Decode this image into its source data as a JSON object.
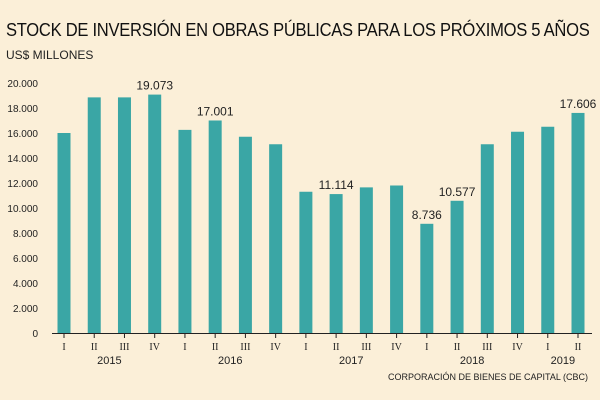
{
  "chart_data": {
    "type": "bar",
    "title": "STOCK DE INVERSIÓN EN OBRAS PÚBLICAS PARA LOS PRÓXIMOS 5 AÑOS",
    "ylabel": "US$ MILLONES",
    "source": "CORPORACIÓN DE BIENES DE CAPITAL (CBC)",
    "ylim": [
      0,
      20000
    ],
    "yticks": [
      0,
      2000,
      4000,
      6000,
      8000,
      10000,
      12000,
      14000,
      16000,
      18000,
      20000
    ],
    "ytick_labels": [
      "0",
      "2.000",
      "4.000",
      "6.000",
      "8.000",
      "10.000",
      "12.000",
      "14.000",
      "16.000",
      "18.000",
      "20.000"
    ],
    "bar_color": "#3aa6a5",
    "categories": [
      "I",
      "II",
      "III",
      "IV",
      "I",
      "II",
      "III",
      "IV",
      "I",
      "II",
      "III",
      "IV",
      "I",
      "II",
      "III",
      "IV",
      "I",
      "II"
    ],
    "values": [
      16000,
      18850,
      18850,
      19073,
      16250,
      17001,
      15700,
      15100,
      11300,
      11114,
      11650,
      11800,
      8736,
      10577,
      15100,
      16100,
      16500,
      17606
    ],
    "labeled": [
      {
        "index": 3,
        "text": "19.073"
      },
      {
        "index": 5,
        "text": "17.001"
      },
      {
        "index": 9,
        "text": "11.114"
      },
      {
        "index": 12,
        "text": "8.736"
      },
      {
        "index": 13,
        "text": "10.577"
      },
      {
        "index": 17,
        "text": "17.606"
      }
    ],
    "year_groups": [
      {
        "label": "2015",
        "start": 0,
        "end": 3
      },
      {
        "label": "2016",
        "start": 4,
        "end": 7
      },
      {
        "label": "2017",
        "start": 8,
        "end": 11
      },
      {
        "label": "2018",
        "start": 12,
        "end": 15
      },
      {
        "label": "2019",
        "start": 16,
        "end": 17
      }
    ]
  }
}
